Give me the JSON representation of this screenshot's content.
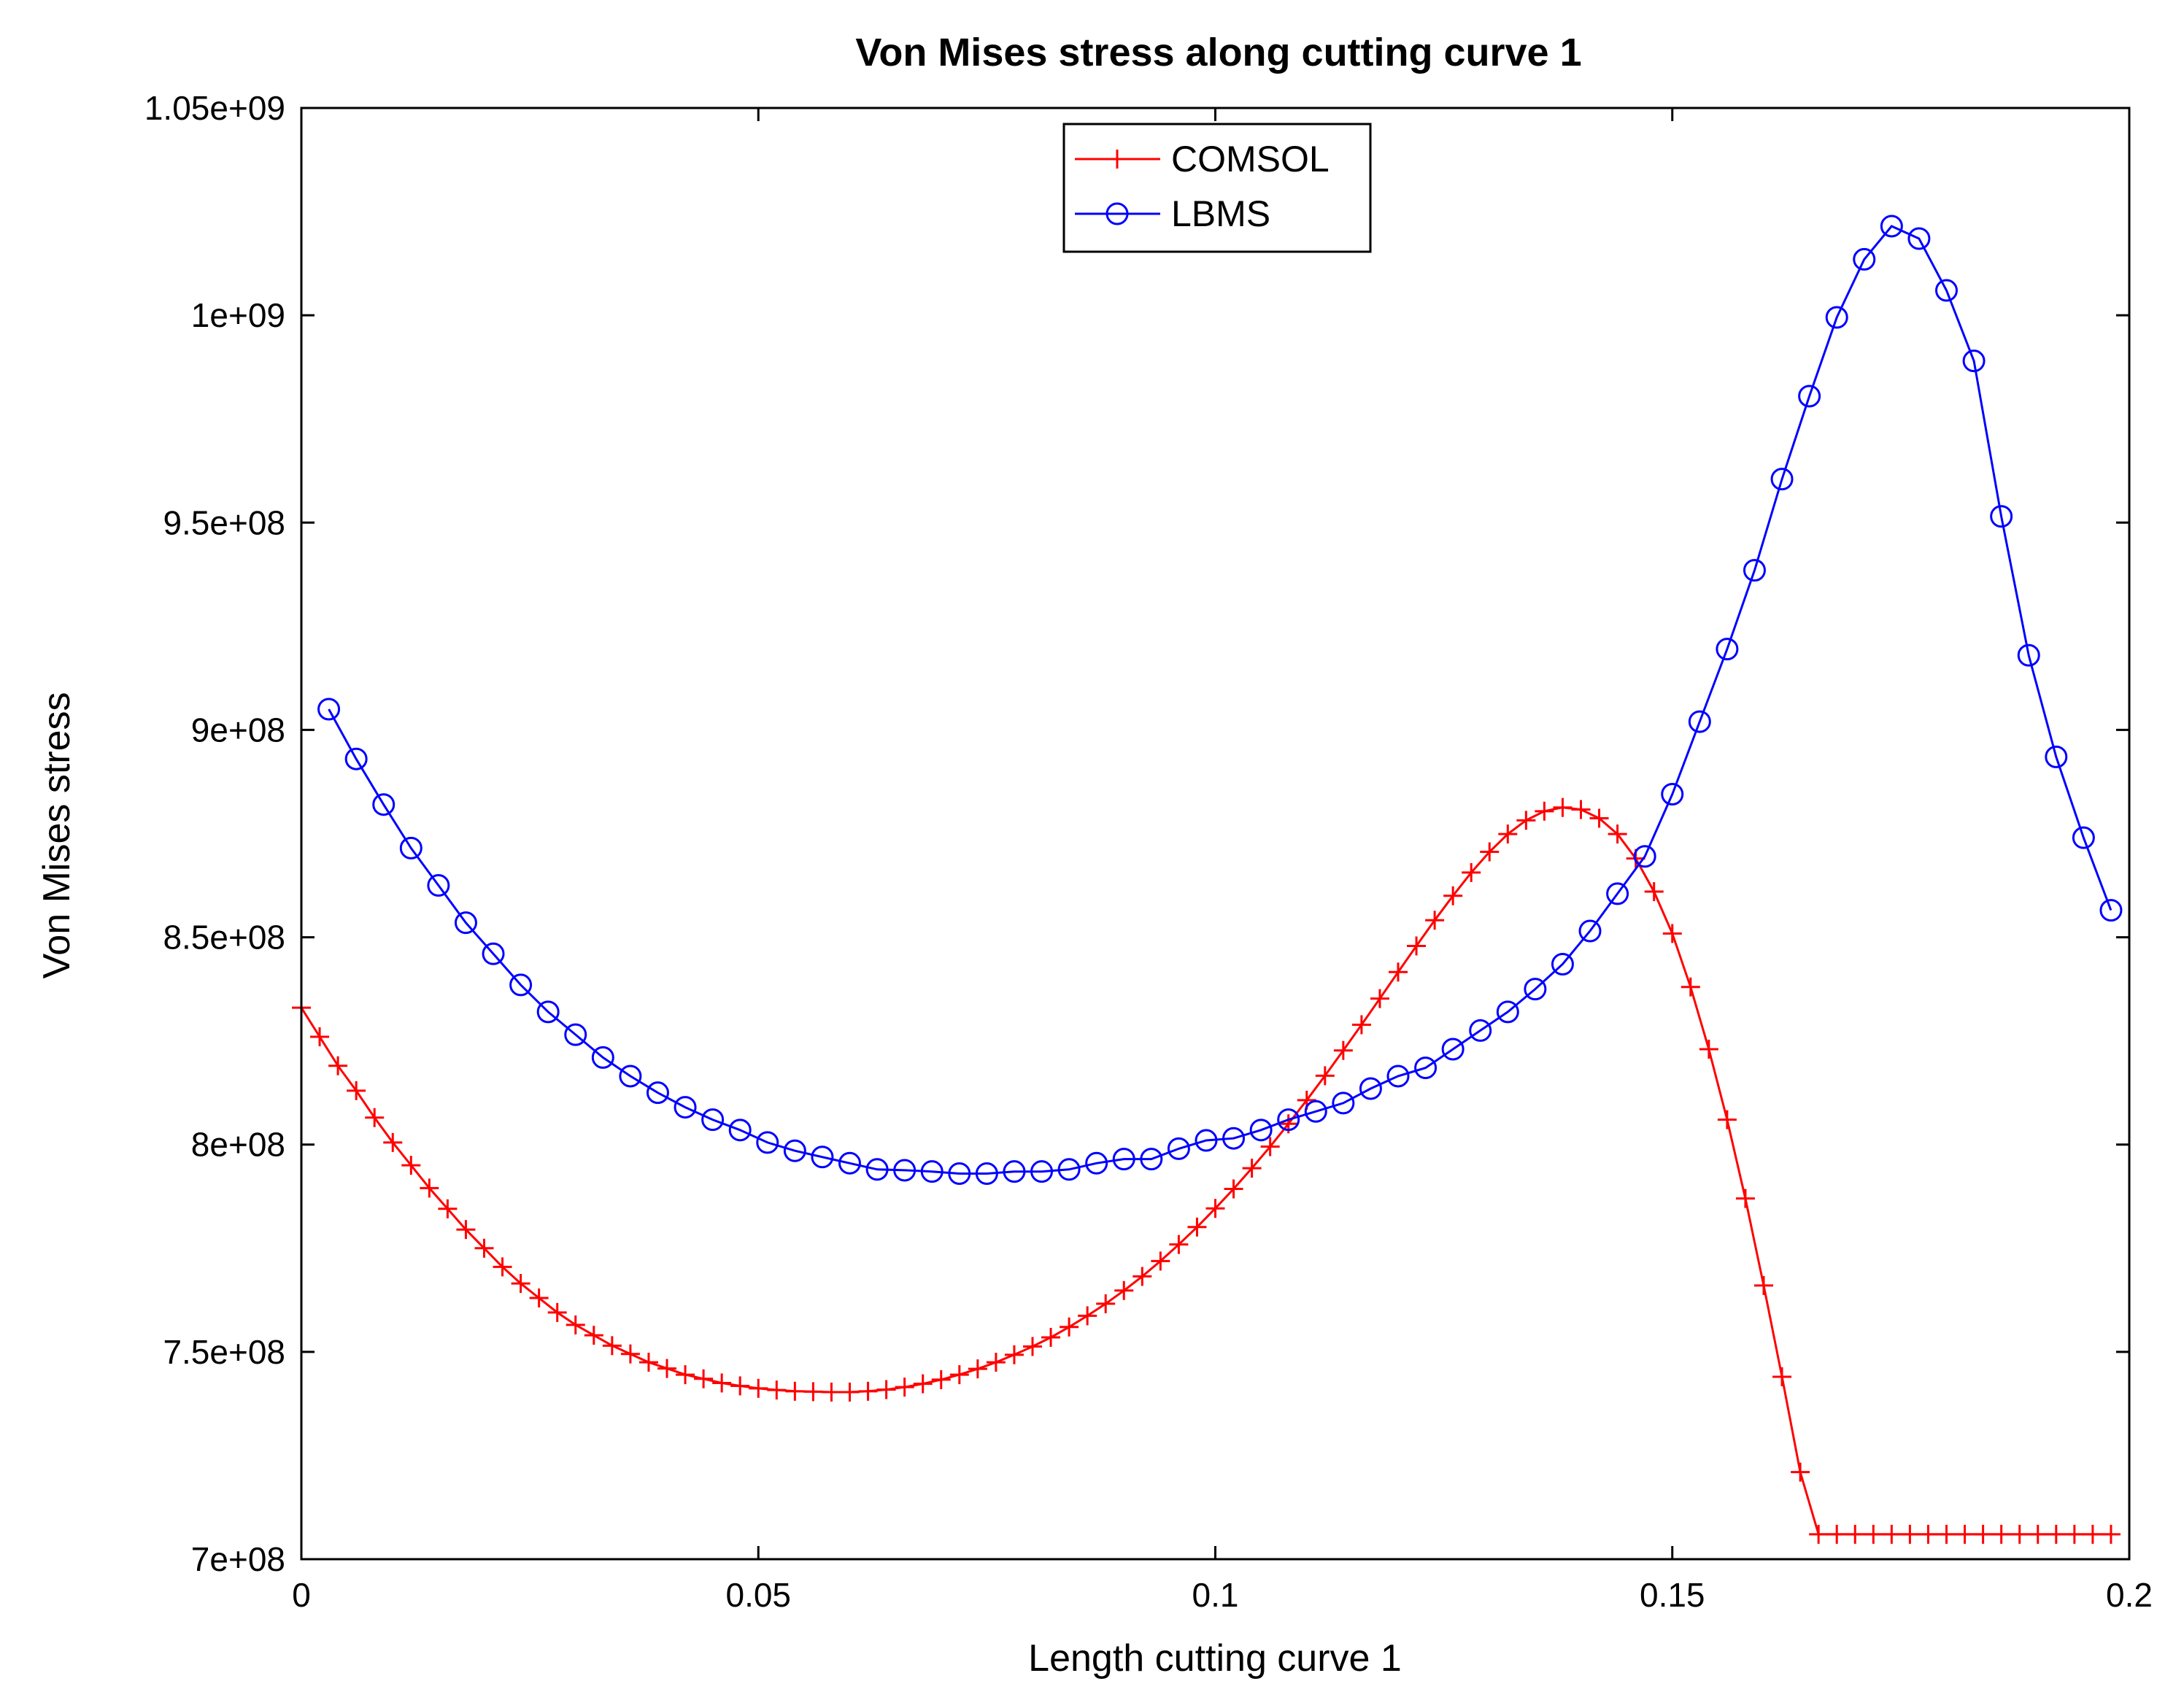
{
  "chart_data": {
    "type": "line",
    "title": "Von Mises stress along cutting curve 1",
    "xlabel": "Length cutting curve 1",
    "ylabel": "Von Mises stress",
    "xlim": [
      0,
      0.2
    ],
    "ylim": [
      700000000,
      1050000000
    ],
    "x_ticks": [
      0,
      0.05,
      0.1,
      0.15,
      0.2
    ],
    "x_tick_labels": [
      "0",
      "0.05",
      "0.1",
      "0.15",
      "0.2"
    ],
    "y_ticks": [
      700000000,
      750000000,
      800000000,
      850000000,
      900000000,
      950000000,
      1000000000,
      1050000000
    ],
    "y_tick_labels": [
      "7e+08",
      "7.5e+08",
      "8e+08",
      "8.5e+08",
      "9e+08",
      "9.5e+08",
      "1e+09",
      "1.05e+09"
    ],
    "grid": false,
    "legend_position": "top-center",
    "series": [
      {
        "name": "COMSOL",
        "color": "#ff0000",
        "marker": "plus",
        "x": [
          0,
          0.002,
          0.004,
          0.006,
          0.008,
          0.01,
          0.012,
          0.014,
          0.016,
          0.018,
          0.02,
          0.022,
          0.024,
          0.026,
          0.028,
          0.03,
          0.032,
          0.034,
          0.036,
          0.038,
          0.04,
          0.042,
          0.044,
          0.046,
          0.048,
          0.05,
          0.052,
          0.054,
          0.056,
          0.058,
          0.06,
          0.062,
          0.064,
          0.066,
          0.068,
          0.07,
          0.072,
          0.074,
          0.076,
          0.078,
          0.08,
          0.082,
          0.084,
          0.086,
          0.088,
          0.09,
          0.092,
          0.094,
          0.096,
          0.098,
          0.1,
          0.102,
          0.104,
          0.106,
          0.108,
          0.11,
          0.112,
          0.114,
          0.116,
          0.118,
          0.12,
          0.122,
          0.124,
          0.126,
          0.128,
          0.13,
          0.132,
          0.134,
          0.136,
          0.138,
          0.14,
          0.142,
          0.144,
          0.146,
          0.148,
          0.15,
          0.152,
          0.154,
          0.156,
          0.158,
          0.16,
          0.162,
          0.164,
          0.166,
          0.168,
          0.17,
          0.172,
          0.174,
          0.176,
          0.178,
          0.18,
          0.182,
          0.184,
          0.186,
          0.188,
          0.19,
          0.192,
          0.194,
          0.196,
          0.198
        ],
        "values": [
          833000000,
          826000000,
          819000000,
          813000000,
          806500000,
          800500000,
          795000000,
          789500000,
          784500000,
          779500000,
          775000000,
          770500000,
          766500000,
          763000000,
          759500000,
          756500000,
          754000000,
          751500000,
          749500000,
          747500000,
          746000000,
          744500000,
          743500000,
          742500000,
          741800000,
          741200000,
          740800000,
          740500000,
          740400000,
          740300000,
          740300000,
          740500000,
          740900000,
          741500000,
          742300000,
          743300000,
          744500000,
          745900000,
          747500000,
          749300000,
          751300000,
          753500000,
          756000000,
          758700000,
          761600000,
          764800000,
          768200000,
          771900000,
          775900000,
          780100000,
          784600000,
          789300000,
          794300000,
          799500000,
          805000000,
          810700000,
          816600000,
          822700000,
          828900000,
          835200000,
          841600000,
          847900000,
          854100000,
          860000000,
          865600000,
          870600000,
          874900000,
          878200000,
          880400000,
          881300000,
          880800000,
          878700000,
          874900000,
          869000000,
          861000000,
          850900000,
          838000000,
          823000000,
          806000000,
          787000000,
          766000000,
          744000000,
          721000000,
          706000000,
          706000000,
          706000000,
          706000000,
          706000000,
          706000000,
          706000000,
          706000000,
          706000000,
          706000000,
          706000000,
          706000000,
          706000000,
          706000000,
          706000000,
          706000000,
          706000000
        ]
      },
      {
        "name": "LBMS",
        "color": "#0000ff",
        "marker": "circle",
        "x": [
          0.003,
          0.006,
          0.009,
          0.012,
          0.015,
          0.018,
          0.021,
          0.024,
          0.027,
          0.03,
          0.033,
          0.036,
          0.039,
          0.042,
          0.045,
          0.048,
          0.051,
          0.054,
          0.057,
          0.06,
          0.063,
          0.066,
          0.069,
          0.072,
          0.075,
          0.078,
          0.081,
          0.084,
          0.087,
          0.09,
          0.093,
          0.096,
          0.099,
          0.102,
          0.105,
          0.108,
          0.111,
          0.114,
          0.117,
          0.12,
          0.123,
          0.126,
          0.129,
          0.132,
          0.135,
          0.138,
          0.141,
          0.144,
          0.147,
          0.15,
          0.153,
          0.156,
          0.159,
          0.162,
          0.165,
          0.168,
          0.171,
          0.174,
          0.177,
          0.18,
          0.183,
          0.186,
          0.189,
          0.192,
          0.195,
          0.198
        ],
        "values": [
          905000000,
          893000000,
          882000000,
          871500000,
          862500000,
          853500000,
          846000000,
          838500000,
          832000000,
          826500000,
          821000000,
          816500000,
          812500000,
          809000000,
          806000000,
          803500000,
          800500000,
          798500000,
          797000000,
          795500000,
          794000000,
          793800000,
          793500000,
          793000000,
          793000000,
          793500000,
          793500000,
          794000000,
          795500000,
          796500000,
          796500000,
          799000000,
          801000000,
          801500000,
          803500000,
          806000000,
          808000000,
          810000000,
          813500000,
          816500000,
          818500000,
          823000000,
          827500000,
          832000000,
          837500000,
          843500000,
          851500000,
          860500000,
          869500000,
          884500000,
          902000000,
          919500000,
          938500000,
          960500000,
          980500000,
          999500000,
          1013500000,
          1021500000,
          1018500000,
          1006000000,
          989000000,
          951500000,
          918000000,
          893500000,
          874000000,
          856500000
        ]
      }
    ]
  }
}
